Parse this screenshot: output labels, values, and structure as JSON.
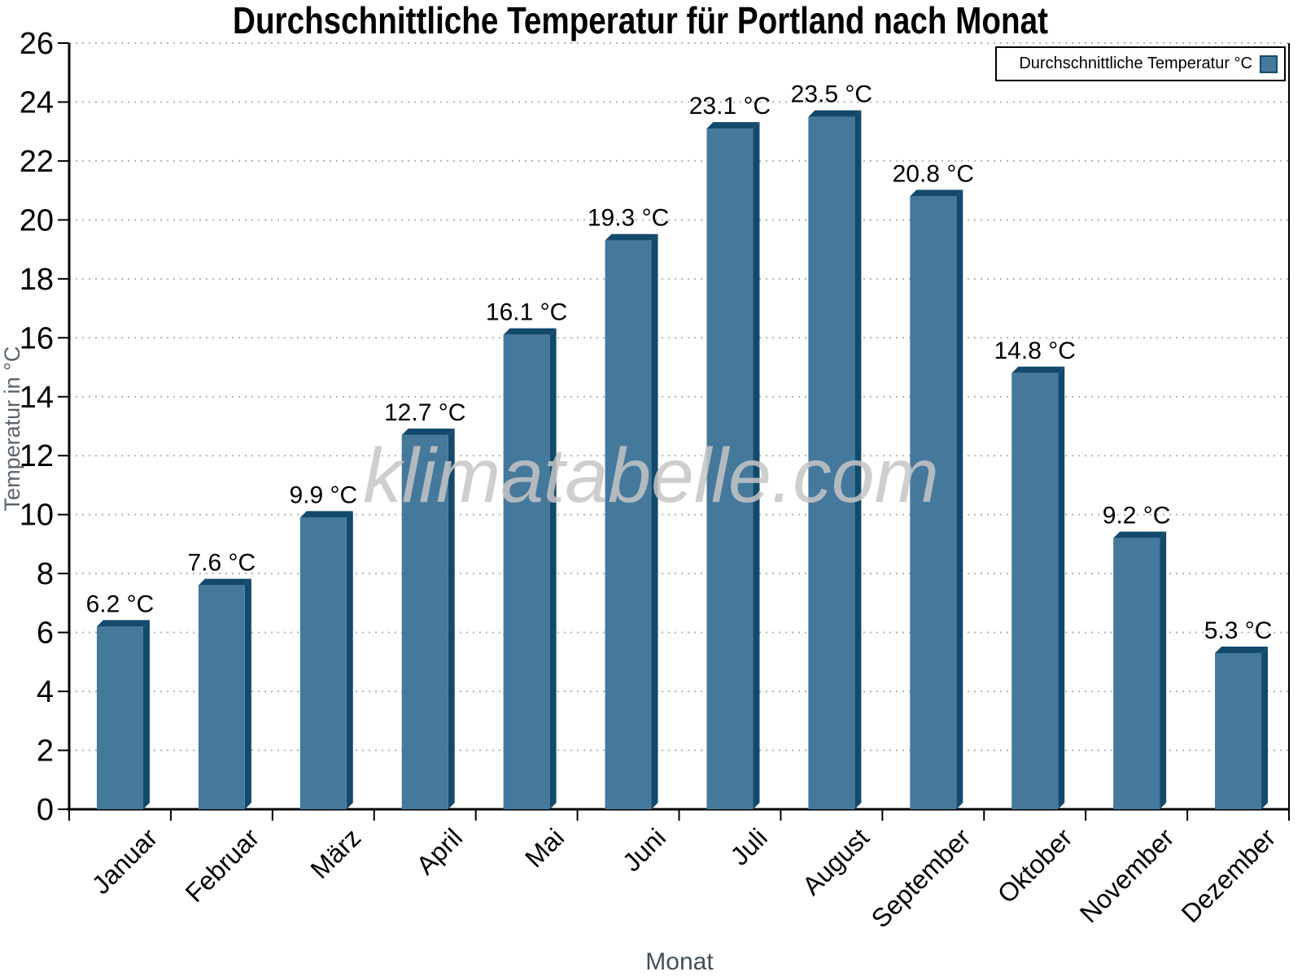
{
  "chart_data": {
    "type": "bar",
    "title": "Durchschnittliche Temperatur für Portland nach Monat",
    "categories": [
      "Januar",
      "Februar",
      "März",
      "April",
      "Mai",
      "Juni",
      "Juli",
      "August",
      "September",
      "Oktober",
      "November",
      "Dezember"
    ],
    "values": [
      6.2,
      7.6,
      9.9,
      12.7,
      16.1,
      19.3,
      23.1,
      23.5,
      20.8,
      14.8,
      9.2,
      5.3
    ],
    "value_labels": [
      "6.2 °C",
      "7.6 °C",
      "9.9 °C",
      "12.7 °C",
      "16.1 °C",
      "19.3 °C",
      "23.1 °C",
      "23.5 °C",
      "20.8 °C",
      "14.8 °C",
      "9.2 °C",
      "5.3 °C"
    ],
    "xlabel": "Monat",
    "ylabel": "Temperatur in °C",
    "ylim": [
      0,
      26
    ],
    "ytick_step": 2,
    "grid": "horizontal-dotted",
    "legend": {
      "label": "Durchschnittliche Temperatur °C",
      "position": "top-right"
    },
    "watermark": "klimatabelle.com",
    "colors": {
      "bar_face": "#45799C",
      "bar_edge": "#134A6C",
      "grid": "#B3B3B3",
      "axis": "#000000",
      "tick_label": "#000000",
      "value_label": "#000000",
      "ylabel_color": "#5A646E",
      "xlabel_color": "#434E5A",
      "watermark_color": "#C6C6C6",
      "background": "#FFFFFF"
    }
  }
}
